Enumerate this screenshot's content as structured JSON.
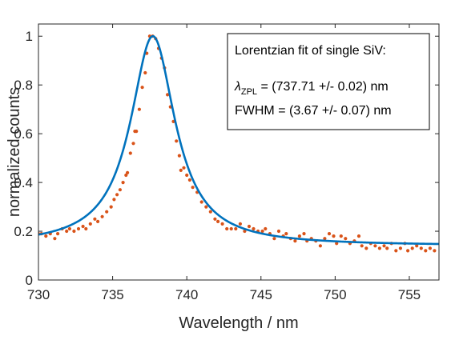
{
  "chart_data": {
    "type": "scatter",
    "xlabel": "Wavelength / nm",
    "ylabel": "normalized counts",
    "xlim": [
      730,
      757
    ],
    "ylim": [
      0,
      1.05
    ],
    "xticks": [
      "730",
      "735",
      "740",
      "745",
      "750",
      "755"
    ],
    "yticks": [
      "0",
      "0.2",
      "0.4",
      "0.6",
      "0.8",
      "1"
    ],
    "grid": false,
    "annotation": {
      "title": "Lorentzian fit of single SiV:",
      "lambda_symbol": "λ",
      "lambda_subscript": "ZPL",
      "lambda_value": " = (737.71 +/- 0.02) nm",
      "fwhm": "FWHM = (3.67 +/- 0.07) nm"
    },
    "fit": {
      "model": "lorentzian",
      "center": 737.71,
      "fwhm": 3.67,
      "amplitude": 0.86,
      "offset": 0.14,
      "color": "#0072BD"
    },
    "points_color": "#D95319",
    "series": [
      {
        "values": [
          [
            730.0,
            0.19
          ],
          [
            730.2,
            0.19
          ],
          [
            730.5,
            0.18
          ],
          [
            730.8,
            0.19
          ],
          [
            731.1,
            0.17
          ],
          [
            731.3,
            0.19
          ],
          [
            731.6,
            0.21
          ],
          [
            731.9,
            0.2
          ],
          [
            732.1,
            0.21
          ],
          [
            732.4,
            0.2
          ],
          [
            732.7,
            0.21
          ],
          [
            733.0,
            0.22
          ],
          [
            733.2,
            0.21
          ],
          [
            733.5,
            0.23
          ],
          [
            733.8,
            0.25
          ],
          [
            734.0,
            0.24
          ],
          [
            734.3,
            0.26
          ],
          [
            734.6,
            0.28
          ],
          [
            734.9,
            0.3
          ],
          [
            735.1,
            0.33
          ],
          [
            735.3,
            0.35
          ],
          [
            735.5,
            0.37
          ],
          [
            735.7,
            0.4
          ],
          [
            735.9,
            0.43
          ],
          [
            736.0,
            0.44
          ],
          [
            736.2,
            0.52
          ],
          [
            736.4,
            0.56
          ],
          [
            736.5,
            0.61
          ],
          [
            736.6,
            0.61
          ],
          [
            736.8,
            0.7
          ],
          [
            737.0,
            0.79
          ],
          [
            737.2,
            0.85
          ],
          [
            737.3,
            0.93
          ],
          [
            737.5,
            1.0
          ],
          [
            737.7,
            1.0
          ],
          [
            737.9,
            0.99
          ],
          [
            738.1,
            0.95
          ],
          [
            738.3,
            0.91
          ],
          [
            738.5,
            0.87
          ],
          [
            738.7,
            0.76
          ],
          [
            738.9,
            0.71
          ],
          [
            739.1,
            0.65
          ],
          [
            739.3,
            0.57
          ],
          [
            739.5,
            0.51
          ],
          [
            739.6,
            0.45
          ],
          [
            739.8,
            0.46
          ],
          [
            740.0,
            0.43
          ],
          [
            740.2,
            0.41
          ],
          [
            740.4,
            0.38
          ],
          [
            740.7,
            0.36
          ],
          [
            741.0,
            0.32
          ],
          [
            741.3,
            0.3
          ],
          [
            741.6,
            0.28
          ],
          [
            741.9,
            0.25
          ],
          [
            742.1,
            0.24
          ],
          [
            742.4,
            0.23
          ],
          [
            742.7,
            0.21
          ],
          [
            743.0,
            0.21
          ],
          [
            743.3,
            0.21
          ],
          [
            743.6,
            0.23
          ],
          [
            743.9,
            0.2
          ],
          [
            744.2,
            0.22
          ],
          [
            744.5,
            0.21
          ],
          [
            744.8,
            0.2
          ],
          [
            745.1,
            0.2
          ],
          [
            745.3,
            0.21
          ],
          [
            745.6,
            0.19
          ],
          [
            745.9,
            0.17
          ],
          [
            746.2,
            0.2
          ],
          [
            746.5,
            0.18
          ],
          [
            746.7,
            0.19
          ],
          [
            747.0,
            0.17
          ],
          [
            747.3,
            0.16
          ],
          [
            747.6,
            0.18
          ],
          [
            747.9,
            0.19
          ],
          [
            748.1,
            0.16
          ],
          [
            748.4,
            0.17
          ],
          [
            748.7,
            0.16
          ],
          [
            749.0,
            0.14
          ],
          [
            749.3,
            0.17
          ],
          [
            749.6,
            0.19
          ],
          [
            749.9,
            0.18
          ],
          [
            750.1,
            0.15
          ],
          [
            750.4,
            0.18
          ],
          [
            750.7,
            0.17
          ],
          [
            751.0,
            0.15
          ],
          [
            751.3,
            0.16
          ],
          [
            751.6,
            0.18
          ],
          [
            751.8,
            0.14
          ],
          [
            752.1,
            0.13
          ],
          [
            752.4,
            0.15
          ],
          [
            752.7,
            0.14
          ],
          [
            753.0,
            0.13
          ],
          [
            753.3,
            0.14
          ],
          [
            753.5,
            0.13
          ],
          [
            753.8,
            0.15
          ],
          [
            754.1,
            0.12
          ],
          [
            754.4,
            0.13
          ],
          [
            754.7,
            0.15
          ],
          [
            754.9,
            0.12
          ],
          [
            755.2,
            0.13
          ],
          [
            755.5,
            0.14
          ],
          [
            755.8,
            0.13
          ],
          [
            756.1,
            0.12
          ],
          [
            756.4,
            0.13
          ],
          [
            756.7,
            0.12
          ]
        ]
      }
    ]
  }
}
